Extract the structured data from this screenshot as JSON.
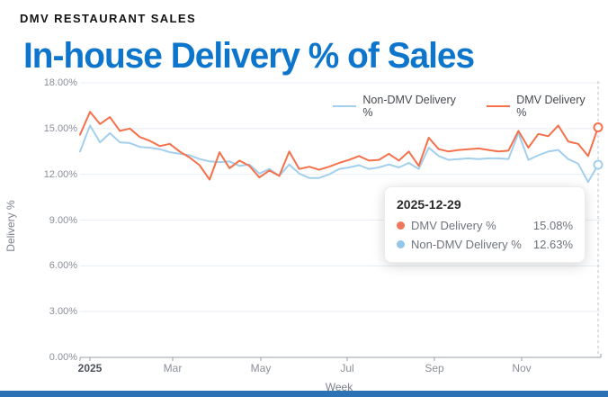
{
  "header": {
    "kicker": "DMV RESTAURANT SALES",
    "title": "In-house Delivery % of Sales"
  },
  "colors": {
    "title_blue": "#0d76cc",
    "dmv_orange": "#f4714c",
    "non_dmv_blue": "#a3cfee",
    "grid": "#e8eef3",
    "axis": "#9aa0a8",
    "cursor_dash": "#b9bfc8",
    "bottom_bar": "#2d72b5"
  },
  "legend": [
    {
      "label": "Non-DMV Delivery %",
      "color": "#a3cfee"
    },
    {
      "label": "DMV Delivery %",
      "color": "#f4714c"
    }
  ],
  "tooltip": {
    "date": "2025-12-29",
    "rows": [
      {
        "label": "DMV Delivery %",
        "value": "15.08%",
        "color": "#f0765a"
      },
      {
        "label": "Non-DMV Delivery %",
        "value": "12.63%",
        "color": "#92c5ea"
      }
    ]
  },
  "chart_data": {
    "type": "line",
    "title": "In-house Delivery % of Sales",
    "xlabel": "Week",
    "ylabel": "Delivery %",
    "ylim": [
      0,
      18
    ],
    "grid": "horizontal",
    "legend_position": "top-right",
    "yticks": [
      "18.00%",
      "15.00%",
      "12.00%",
      "9.00%",
      "6.00%",
      "3.00%",
      "0.00%"
    ],
    "ytick_values": [
      18,
      15,
      12,
      9,
      6,
      3,
      0
    ],
    "xticks": [
      "2025",
      "Mar",
      "May",
      "Jul",
      "Sep",
      "Nov"
    ],
    "x_description": "weekly data for 2025, first point 2024-12-30, last point 2025-12-29",
    "cursor_date": "2025-12-29",
    "series": [
      {
        "name": "Non-DMV Delivery %",
        "color": "#a3cfee",
        "values": [
          13.5,
          15.2,
          14.1,
          14.7,
          14.1,
          14.05,
          13.8,
          13.75,
          13.65,
          13.45,
          13.35,
          13.25,
          13.0,
          12.85,
          12.8,
          12.85,
          12.55,
          12.65,
          12.05,
          12.35,
          11.9,
          12.65,
          12.05,
          11.76,
          11.76,
          12.0,
          12.35,
          12.45,
          12.6,
          12.35,
          12.45,
          12.65,
          12.45,
          12.75,
          12.35,
          13.75,
          13.2,
          12.95,
          13.0,
          13.05,
          13.0,
          13.05,
          13.05,
          13.0,
          14.7,
          12.95,
          13.25,
          13.5,
          13.6,
          13.0,
          12.7,
          11.5,
          12.63
        ],
        "last_value_label": "12.63%"
      },
      {
        "name": "DMV Delivery %",
        "color": "#f4714c",
        "values": [
          14.6,
          16.1,
          15.3,
          15.75,
          14.85,
          15.0,
          14.45,
          14.2,
          13.85,
          14.0,
          13.5,
          13.1,
          12.6,
          11.65,
          13.45,
          12.4,
          12.9,
          12.55,
          11.8,
          12.25,
          11.9,
          13.5,
          12.35,
          12.5,
          12.3,
          12.5,
          12.75,
          12.95,
          13.2,
          12.9,
          12.95,
          13.35,
          12.9,
          13.5,
          12.55,
          14.4,
          13.65,
          13.5,
          13.6,
          13.65,
          13.7,
          13.6,
          13.5,
          13.55,
          14.85,
          13.75,
          14.65,
          14.5,
          15.2,
          14.15,
          14.0,
          13.2,
          15.08
        ],
        "last_value_label": "15.08%"
      }
    ]
  }
}
